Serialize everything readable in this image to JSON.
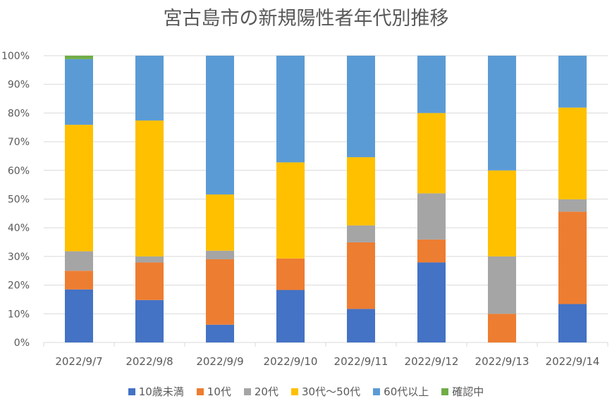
{
  "chart_data": {
    "type": "bar",
    "stacked": "percent",
    "title": "宮古島市の新規陽性者年代別推移",
    "xlabel": "",
    "ylabel": "",
    "ylim": [
      0,
      100
    ],
    "yticks": [
      "0%",
      "10%",
      "20%",
      "30%",
      "40%",
      "50%",
      "60%",
      "70%",
      "80%",
      "90%",
      "100%"
    ],
    "grid": true,
    "legend_position": "bottom",
    "categories": [
      "2022/9/7",
      "2022/9/8",
      "2022/9/9",
      "2022/9/10",
      "2022/9/11",
      "2022/9/12",
      "2022/9/13",
      "2022/9/14"
    ],
    "series": [
      {
        "name": "10歳未満",
        "color": "#4472C4",
        "values": [
          18.5,
          14.8,
          6.2,
          18.3,
          11.7,
          27.9,
          0,
          13.4
        ]
      },
      {
        "name": "10代",
        "color": "#ED7D31",
        "values": [
          6.5,
          13.1,
          22.8,
          11.0,
          23.2,
          8.0,
          10.0,
          32.2
        ]
      },
      {
        "name": "20代",
        "color": "#A5A5A5",
        "values": [
          6.8,
          2.1,
          3.0,
          0,
          5.9,
          16.1,
          20.0,
          4.3
        ]
      },
      {
        "name": "30代～50代",
        "color": "#FFC000",
        "values": [
          44.1,
          47.4,
          19.6,
          33.5,
          23.8,
          28.0,
          30.0,
          32.0
        ]
      },
      {
        "name": "60代以上",
        "color": "#5B9BD5",
        "values": [
          22.9,
          22.6,
          48.4,
          37.2,
          35.4,
          20.0,
          40.0,
          18.1
        ]
      },
      {
        "name": "確認中",
        "color": "#70AD47",
        "values": [
          1.2,
          0,
          0,
          0,
          0,
          0,
          0,
          0
        ]
      }
    ]
  }
}
